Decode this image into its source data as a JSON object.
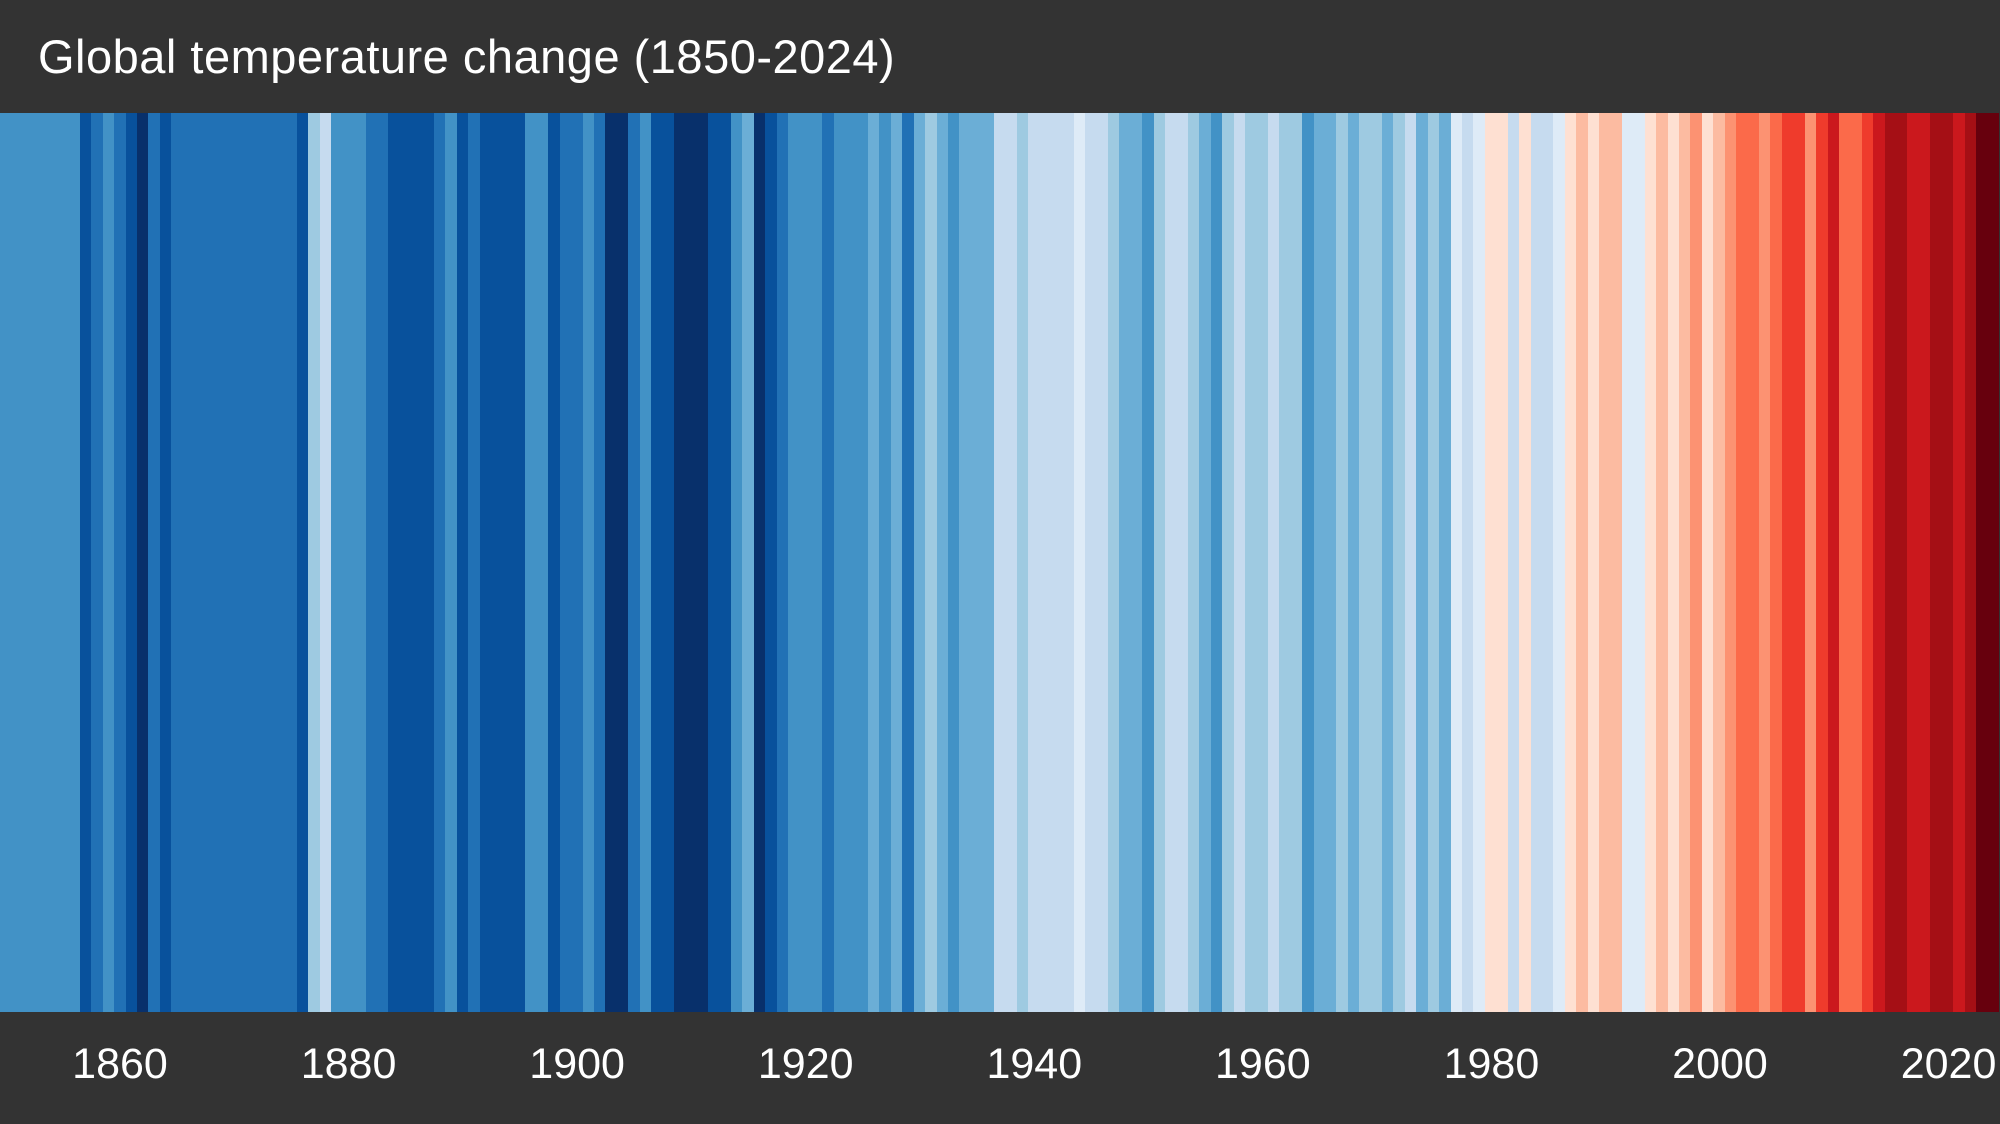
{
  "header": {
    "title": "Global temperature change (1850-2024)",
    "background_color": "#333333",
    "text_color": "#ffffff"
  },
  "x_axis": {
    "background_color": "#333333",
    "text_color": "#ffffff",
    "tick_labels": [
      "1860",
      "1880",
      "1900",
      "1920",
      "1940",
      "1960",
      "1980",
      "2000",
      "2020"
    ],
    "tick_years": [
      1860,
      1880,
      1900,
      1920,
      1940,
      1960,
      1980,
      2000,
      2020
    ]
  },
  "chart_data": {
    "type": "heatmap",
    "variant": "warming-stripes",
    "title": "Global temperature change (1850-2024)",
    "xlabel": "",
    "ylabel": "",
    "start_year": 1850,
    "end_year": 2024,
    "num_stripes": 175,
    "grid": false,
    "legend": "none",
    "color_encoding": "each vertical stripe is one year; blue = cooler than average, red = warmer than average; darker shade = larger anomaly",
    "palette_blues_dark_to_light": [
      "#08306b",
      "#08519c",
      "#2171b5",
      "#4292c6",
      "#6baed6",
      "#9ecae1",
      "#c6dbef",
      "#deebf7"
    ],
    "palette_reds_light_to_dark": [
      "#fee0d2",
      "#fcbba1",
      "#fc9272",
      "#fb6a4a",
      "#ef3b2c",
      "#cb181d",
      "#a50f15",
      "#67000d"
    ],
    "stripe_colors": [
      "#4292c6",
      "#4292c6",
      "#4292c6",
      "#4292c6",
      "#4292c6",
      "#4292c6",
      "#4292c6",
      "#08519c",
      "#2171b5",
      "#4292c6",
      "#2171b5",
      "#08519c",
      "#08306b",
      "#2171b5",
      "#08519c",
      "#2171b5",
      "#2171b5",
      "#2171b5",
      "#2171b5",
      "#2171b5",
      "#2171b5",
      "#2171b5",
      "#2171b5",
      "#2171b5",
      "#2171b5",
      "#2171b5",
      "#08519c",
      "#9ecae1",
      "#c6dbef",
      "#4292c6",
      "#4292c6",
      "#4292c6",
      "#2171b5",
      "#2171b5",
      "#08519c",
      "#08519c",
      "#08519c",
      "#08519c",
      "#2171b5",
      "#4292c6",
      "#08519c",
      "#2171b5",
      "#08519c",
      "#08519c",
      "#08519c",
      "#08519c",
      "#4292c6",
      "#4292c6",
      "#08519c",
      "#2171b5",
      "#2171b5",
      "#4292c6",
      "#2171b5",
      "#08306b",
      "#08306b",
      "#2171b5",
      "#4292c6",
      "#08519c",
      "#08519c",
      "#08306b",
      "#08306b",
      "#08306b",
      "#08519c",
      "#08519c",
      "#4292c6",
      "#6baed6",
      "#08306b",
      "#08519c",
      "#2171b5",
      "#4292c6",
      "#4292c6",
      "#4292c6",
      "#2171b5",
      "#4292c6",
      "#4292c6",
      "#4292c6",
      "#6baed6",
      "#4292c6",
      "#6baed6",
      "#2171b5",
      "#6baed6",
      "#9ecae1",
      "#6baed6",
      "#4292c6",
      "#6baed6",
      "#6baed6",
      "#6baed6",
      "#c6dbef",
      "#c6dbef",
      "#9ecae1",
      "#c6dbef",
      "#c6dbef",
      "#c6dbef",
      "#c6dbef",
      "#deebf7",
      "#c6dbef",
      "#c6dbef",
      "#9ecae1",
      "#6baed6",
      "#6baed6",
      "#4292c6",
      "#9ecae1",
      "#c6dbef",
      "#c6dbef",
      "#9ecae1",
      "#6baed6",
      "#4292c6",
      "#9ecae1",
      "#c6dbef",
      "#9ecae1",
      "#9ecae1",
      "#c6dbef",
      "#9ecae1",
      "#9ecae1",
      "#4292c6",
      "#6baed6",
      "#6baed6",
      "#9ecae1",
      "#6baed6",
      "#9ecae1",
      "#9ecae1",
      "#6baed6",
      "#9ecae1",
      "#c6dbef",
      "#6baed6",
      "#9ecae1",
      "#6baed6",
      "#deebf7",
      "#c6dbef",
      "#deebf7",
      "#fee0d2",
      "#fee0d2",
      "#c6dbef",
      "#fee0d2",
      "#c6dbef",
      "#c6dbef",
      "#deebf7",
      "#fee0d2",
      "#fcbba1",
      "#fee0d2",
      "#fcbba1",
      "#fcbba1",
      "#deebf7",
      "#deebf7",
      "#fee0d2",
      "#fcbba1",
      "#fee0d2",
      "#fcbba1",
      "#fc9272",
      "#fee0d2",
      "#fcbba1",
      "#fc9272",
      "#fb6a4a",
      "#fb6a4a",
      "#fc9272",
      "#fb6a4a",
      "#ef3b2c",
      "#ef3b2c",
      "#fc9272",
      "#ef3b2c",
      "#cb181d",
      "#fb6a4a",
      "#fb6a4a",
      "#ef3b2c",
      "#cb181d",
      "#a50f15",
      "#a50f15",
      "#cb181d",
      "#cb181d",
      "#a50f15",
      "#a50f15",
      "#cb181d",
      "#a50f15",
      "#67000d",
      "#67000d"
    ]
  }
}
